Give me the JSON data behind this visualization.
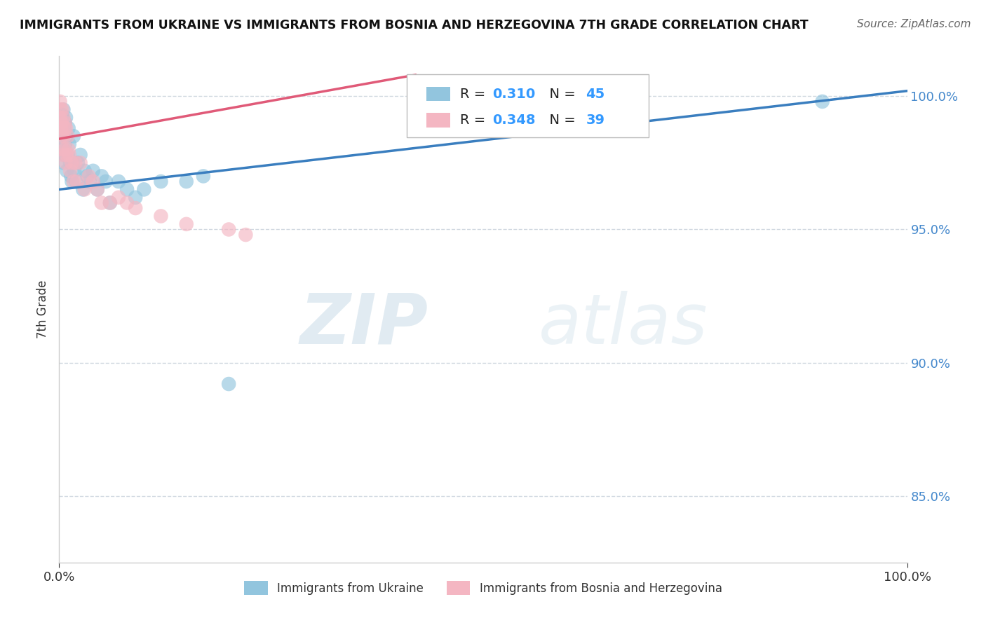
{
  "title": "IMMIGRANTS FROM UKRAINE VS IMMIGRANTS FROM BOSNIA AND HERZEGOVINA 7TH GRADE CORRELATION CHART",
  "source": "Source: ZipAtlas.com",
  "ylabel": "7th Grade",
  "blue_label": "Immigrants from Ukraine",
  "pink_label": "Immigrants from Bosnia and Herzegovina",
  "blue_R": 0.31,
  "blue_N": 45,
  "pink_R": 0.348,
  "pink_N": 39,
  "blue_color": "#92c5de",
  "pink_color": "#f4b6c2",
  "blue_line_color": "#3a7ebf",
  "pink_line_color": "#e05a78",
  "xlim": [
    0.0,
    1.0
  ],
  "ylim": [
    0.825,
    1.015
  ],
  "yticks": [
    0.85,
    0.9,
    0.95,
    1.0
  ],
  "ytick_labels": [
    "85.0%",
    "90.0%",
    "95.0%",
    "100.0%"
  ],
  "xticks": [
    0.0,
    1.0
  ],
  "xtick_labels": [
    "0.0%",
    "100.0%"
  ],
  "blue_line_x0": 0.0,
  "blue_line_x1": 1.0,
  "blue_line_y0": 0.965,
  "blue_line_y1": 1.002,
  "pink_line_x0": 0.0,
  "pink_line_x1": 0.42,
  "pink_line_y0": 0.984,
  "pink_line_y1": 1.008,
  "watermark_zip": "ZIP",
  "watermark_atlas": "atlas",
  "background_color": "#ffffff",
  "grid_color": "#d0d8e0",
  "tick_color": "#4488cc",
  "blue_scatter_x": [
    0.001,
    0.002,
    0.003,
    0.003,
    0.004,
    0.004,
    0.005,
    0.005,
    0.006,
    0.006,
    0.007,
    0.007,
    0.008,
    0.008,
    0.009,
    0.01,
    0.011,
    0.012,
    0.013,
    0.014,
    0.015,
    0.016,
    0.017,
    0.018,
    0.02,
    0.022,
    0.025,
    0.028,
    0.03,
    0.033,
    0.036,
    0.04,
    0.045,
    0.05,
    0.055,
    0.06,
    0.07,
    0.08,
    0.09,
    0.1,
    0.12,
    0.15,
    0.17,
    0.9,
    0.2
  ],
  "blue_scatter_y": [
    0.99,
    0.985,
    0.993,
    0.987,
    0.992,
    0.98,
    0.995,
    0.975,
    0.988,
    0.978,
    0.99,
    0.982,
    0.985,
    0.992,
    0.972,
    0.978,
    0.988,
    0.982,
    0.975,
    0.97,
    0.968,
    0.975,
    0.985,
    0.972,
    0.968,
    0.975,
    0.978,
    0.965,
    0.972,
    0.97,
    0.968,
    0.972,
    0.965,
    0.97,
    0.968,
    0.96,
    0.968,
    0.965,
    0.962,
    0.965,
    0.968,
    0.968,
    0.97,
    0.998,
    0.892
  ],
  "pink_scatter_x": [
    0.001,
    0.001,
    0.002,
    0.002,
    0.003,
    0.003,
    0.004,
    0.004,
    0.005,
    0.005,
    0.006,
    0.006,
    0.007,
    0.007,
    0.008,
    0.008,
    0.009,
    0.01,
    0.011,
    0.012,
    0.013,
    0.015,
    0.017,
    0.019,
    0.021,
    0.025,
    0.03,
    0.035,
    0.04,
    0.045,
    0.05,
    0.06,
    0.07,
    0.08,
    0.09,
    0.12,
    0.15,
    0.2,
    0.22
  ],
  "pink_scatter_y": [
    0.998,
    0.992,
    0.995,
    0.988,
    0.99,
    0.985,
    0.995,
    0.98,
    0.992,
    0.978,
    0.988,
    0.985,
    0.99,
    0.98,
    0.988,
    0.975,
    0.978,
    0.985,
    0.98,
    0.978,
    0.972,
    0.975,
    0.968,
    0.975,
    0.968,
    0.975,
    0.965,
    0.97,
    0.968,
    0.965,
    0.96,
    0.96,
    0.962,
    0.96,
    0.958,
    0.955,
    0.952,
    0.95,
    0.948
  ]
}
